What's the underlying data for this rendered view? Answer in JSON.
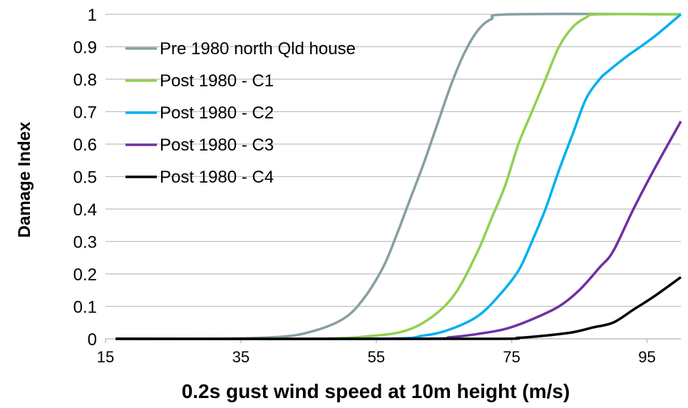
{
  "chart_data": {
    "type": "line",
    "title": "",
    "xlabel": "0.2s gust wind speed at 10m height (m/s)",
    "ylabel": "Damage Index",
    "xlim": [
      15,
      100
    ],
    "ylim": [
      0,
      1
    ],
    "x_ticks": [
      15,
      35,
      55,
      75,
      95
    ],
    "y_ticks": [
      0,
      0.1,
      0.2,
      0.3,
      0.4,
      0.5,
      0.6,
      0.7,
      0.8,
      0.9,
      1
    ],
    "grid": "horizontal",
    "legend_position": "top-left",
    "series": [
      {
        "name": "Pre 1980 north Qld house",
        "color": "#879fa3",
        "points": [
          [
            16.5,
            0
          ],
          [
            30,
            0
          ],
          [
            40,
            0.005
          ],
          [
            45,
            0.02
          ],
          [
            50,
            0.06
          ],
          [
            53,
            0.12
          ],
          [
            56,
            0.22
          ],
          [
            58,
            0.32
          ],
          [
            60,
            0.43
          ],
          [
            62,
            0.54
          ],
          [
            64,
            0.66
          ],
          [
            66,
            0.78
          ],
          [
            68,
            0.88
          ],
          [
            70,
            0.95
          ],
          [
            72,
            0.985
          ],
          [
            75,
            1
          ],
          [
            100,
            1
          ]
        ]
      },
      {
        "name": "Post 1980 - C1",
        "color": "#92d050",
        "points": [
          [
            16.5,
            0
          ],
          [
            45,
            0
          ],
          [
            55,
            0.01
          ],
          [
            60,
            0.03
          ],
          [
            64,
            0.08
          ],
          [
            67,
            0.15
          ],
          [
            70,
            0.27
          ],
          [
            72,
            0.37
          ],
          [
            74,
            0.47
          ],
          [
            76,
            0.6
          ],
          [
            78,
            0.7
          ],
          [
            80,
            0.8
          ],
          [
            82,
            0.9
          ],
          [
            84,
            0.96
          ],
          [
            86,
            0.99
          ],
          [
            88,
            1
          ],
          [
            100,
            1
          ]
        ]
      },
      {
        "name": "Post 1980 - C2",
        "color": "#00b0f0",
        "points": [
          [
            16.5,
            0
          ],
          [
            55,
            0
          ],
          [
            62,
            0.01
          ],
          [
            66,
            0.03
          ],
          [
            70,
            0.07
          ],
          [
            73,
            0.13
          ],
          [
            76,
            0.21
          ],
          [
            78,
            0.3
          ],
          [
            80,
            0.4
          ],
          [
            82,
            0.52
          ],
          [
            84,
            0.63
          ],
          [
            86,
            0.74
          ],
          [
            88,
            0.8
          ],
          [
            89,
            0.82
          ],
          [
            92,
            0.87
          ],
          [
            96,
            0.93
          ],
          [
            100,
            1
          ]
        ]
      },
      {
        "name": "Post 1980 - C3",
        "color": "#7030a0",
        "points": [
          [
            16.5,
            0
          ],
          [
            60,
            0
          ],
          [
            66,
            0.005
          ],
          [
            70,
            0.015
          ],
          [
            74,
            0.03
          ],
          [
            78,
            0.06
          ],
          [
            82,
            0.1
          ],
          [
            85,
            0.15
          ],
          [
            88,
            0.22
          ],
          [
            90,
            0.27
          ],
          [
            93,
            0.4
          ],
          [
            96,
            0.52
          ],
          [
            100,
            0.67
          ]
        ]
      },
      {
        "name": "Post 1980 - C4",
        "color": "#000000",
        "points": [
          [
            16.5,
            0
          ],
          [
            70,
            0
          ],
          [
            76,
            0.003
          ],
          [
            80,
            0.01
          ],
          [
            84,
            0.02
          ],
          [
            87,
            0.035
          ],
          [
            90,
            0.05
          ],
          [
            93,
            0.09
          ],
          [
            96,
            0.13
          ],
          [
            100,
            0.19
          ]
        ]
      }
    ]
  }
}
